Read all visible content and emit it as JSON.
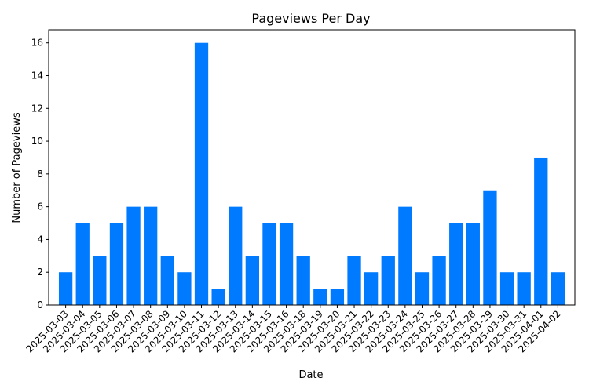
{
  "chart_data": {
    "type": "bar",
    "title": "Pageviews Per Day",
    "xlabel": "Date",
    "ylabel": "Number of Pageviews",
    "categories": [
      "2025-03-03",
      "2025-03-04",
      "2025-03-05",
      "2025-03-06",
      "2025-03-07",
      "2025-03-08",
      "2025-03-09",
      "2025-03-10",
      "2025-03-11",
      "2025-03-12",
      "2025-03-13",
      "2025-03-14",
      "2025-03-15",
      "2025-03-16",
      "2025-03-18",
      "2025-03-19",
      "2025-03-20",
      "2025-03-21",
      "2025-03-22",
      "2025-03-23",
      "2025-03-24",
      "2025-03-25",
      "2025-03-26",
      "2025-03-27",
      "2025-03-28",
      "2025-03-29",
      "2025-03-30",
      "2025-03-31",
      "2025-04-01",
      "2025-04-02"
    ],
    "values": [
      2,
      5,
      3,
      5,
      6,
      6,
      3,
      2,
      16,
      1,
      6,
      3,
      5,
      5,
      3,
      1,
      1,
      3,
      2,
      3,
      6,
      2,
      3,
      5,
      5,
      7,
      2,
      2,
      9,
      2
    ],
    "ylim": [
      0,
      16.8
    ],
    "yticks": [
      0,
      2,
      4,
      6,
      8,
      10,
      12,
      14,
      16
    ],
    "bar_color": "#007bff",
    "grid": false,
    "legend": "none"
  }
}
